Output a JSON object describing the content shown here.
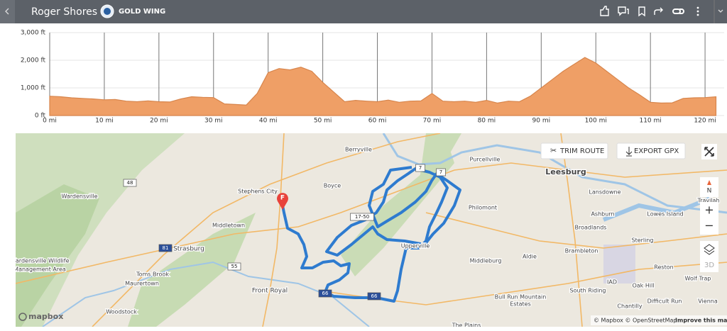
{
  "header": {
    "title": "Roger Shores",
    "bike": "GOLD WING"
  },
  "chart_data": {
    "type": "area",
    "color": "#ef9f66",
    "line_color": "#d7854c",
    "grid": true,
    "x": [
      0,
      2,
      4,
      6,
      8,
      10,
      12,
      14,
      16,
      18,
      20,
      22,
      24,
      26,
      28,
      30,
      32,
      34,
      36,
      38,
      40,
      42,
      44,
      46,
      48,
      50,
      52,
      54,
      56,
      58,
      60,
      62,
      64,
      66,
      68,
      70,
      72,
      74,
      76,
      78,
      80,
      82,
      84,
      86,
      88,
      90,
      92,
      94,
      96,
      98,
      100,
      102,
      104,
      106,
      108,
      110,
      112,
      114,
      116,
      118,
      120,
      122
    ],
    "values": [
      700,
      680,
      640,
      620,
      600,
      570,
      580,
      520,
      500,
      530,
      500,
      490,
      600,
      680,
      660,
      650,
      420,
      400,
      380,
      800,
      1550,
      1700,
      1650,
      1750,
      1600,
      1200,
      850,
      500,
      550,
      520,
      500,
      560,
      480,
      520,
      530,
      800,
      520,
      500,
      520,
      480,
      550,
      450,
      520,
      500,
      700,
      1000,
      1300,
      1600,
      1850,
      2100,
      1900,
      1600,
      1300,
      1000,
      750,
      480,
      450,
      460,
      620,
      640,
      650,
      680
    ],
    "xlim": [
      0,
      123.5
    ],
    "ylim": [
      0,
      3000
    ],
    "xticks": [
      {
        "value": 0,
        "label": "0 mi"
      },
      {
        "value": 10,
        "label": "10 mi"
      },
      {
        "value": 20,
        "label": "20 mi"
      },
      {
        "value": 30,
        "label": "30 mi"
      },
      {
        "value": 40,
        "label": "40 mi"
      },
      {
        "value": 50,
        "label": "50 mi"
      },
      {
        "value": 60,
        "label": "60 mi"
      },
      {
        "value": 70,
        "label": "70 mi"
      },
      {
        "value": 80,
        "label": "80 mi"
      },
      {
        "value": 90,
        "label": "90 mi"
      },
      {
        "value": 100,
        "label": "100 mi"
      },
      {
        "value": 110,
        "label": "110 mi"
      },
      {
        "value": 120,
        "label": "120 mi"
      }
    ],
    "yticks": [
      {
        "value": 0,
        "label": "0 ft"
      },
      {
        "value": 1000,
        "label": "1,000 ft"
      },
      {
        "value": 2000,
        "label": "2,000 ft"
      },
      {
        "value": 3000,
        "label": "3,000 ft"
      }
    ]
  },
  "map": {
    "buttons": [
      "TRIM ROUTE",
      "EXPORT GPX"
    ],
    "controls": [
      "N",
      "+",
      "−",
      "3D"
    ],
    "marker": "F",
    "places": [
      "Berryville",
      "Purcellville",
      "Leesburg",
      "Lansdowne",
      "Travilah",
      "Wardensville",
      "Stephens City",
      "Boyce",
      "Philomont",
      "Ashburn",
      "Lowes Island",
      "Broadlands",
      "Sterling",
      "Middletown",
      "Strasburg",
      "Upperville",
      "Middleburg",
      "Aldie",
      "Brambleton",
      "Wardensville Wildlife",
      "Management Area",
      "Toms Brook",
      "Maurertown",
      "Reston",
      "Wolf Trap",
      "IAD",
      "Front Royal",
      "Bull Run Mountain",
      "Estates",
      "South Riding",
      "Oak Hill",
      "Difficult Run",
      "Woodstock",
      "Chantilly",
      "Vienna",
      "The Plains"
    ],
    "shields": [
      "7",
      "7",
      "48",
      "17-50",
      "81",
      "55",
      "66",
      "66"
    ],
    "logo": "mapbox",
    "attribution": "© Mapbox © OpenStreetMap",
    "improve": "Improve this map"
  }
}
